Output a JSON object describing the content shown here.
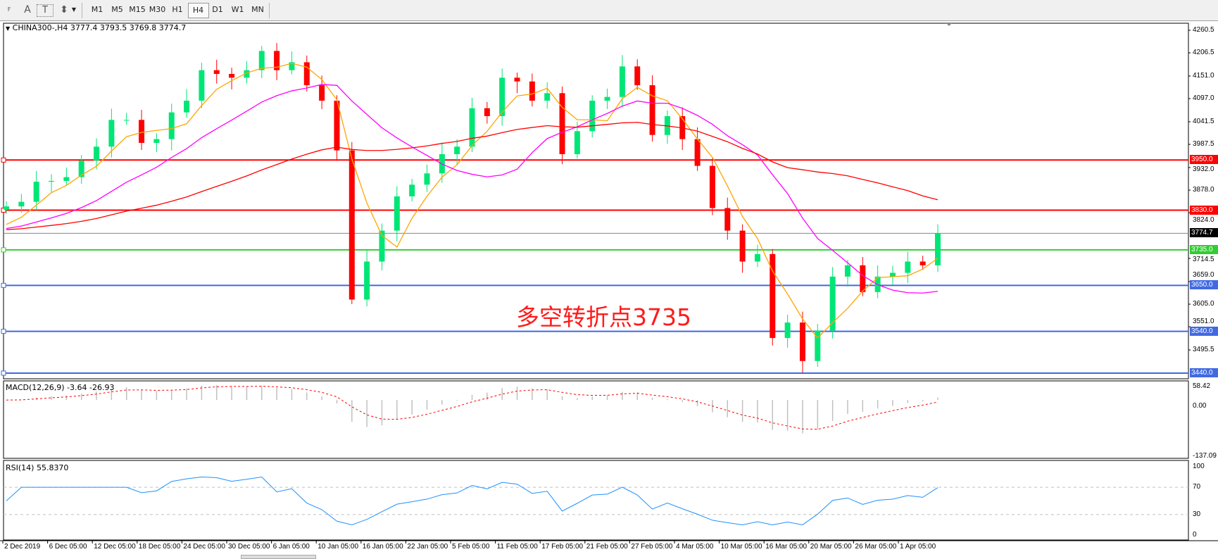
{
  "toolbar": {
    "tools": [
      {
        "icon": "period-separator-icon",
        "label": "F"
      },
      {
        "icon": "text-icon",
        "label": "A"
      },
      {
        "icon": "text-label-icon",
        "label": "T"
      },
      {
        "icon": "arrows-icon",
        "label": "⬍"
      }
    ],
    "timeframes": [
      "M1",
      "M5",
      "M15",
      "M30",
      "H1",
      "H4",
      "D1",
      "W1",
      "MN"
    ],
    "active_timeframe": "H4"
  },
  "chart": {
    "title": "CHINA300-,H4  3777.4 3793.5 3769.8 3774.7",
    "symbol": "CHINA300-",
    "timeframe": "H4",
    "ohlc": {
      "open": 3777.4,
      "high": 3793.5,
      "low": 3769.8,
      "close": 3774.7
    },
    "annotation": "多空转折点3735",
    "price_ticks": [
      "4260.5",
      "4206.5",
      "4151.0",
      "4097.0",
      "4041.5",
      "3987.5",
      "3932.0",
      "3878.0",
      "3824.0",
      "3714.5",
      "3659.0",
      "3605.0",
      "3551.0",
      "3495.5"
    ],
    "levels": [
      {
        "price": 3950.0,
        "label": "3950.0",
        "color": "#ff0000"
      },
      {
        "price": 3830.0,
        "label": "3830.0",
        "color": "#ff0000"
      },
      {
        "price": 3774.7,
        "label": "3774.7",
        "color": "#000000",
        "line_color": "#778899"
      },
      {
        "price": 3735.0,
        "label": "3735.0",
        "color": "#32cd32"
      },
      {
        "price": 3650.0,
        "label": "3650.0",
        "color": "#4169e1"
      },
      {
        "price": 3540.0,
        "label": "3540.0",
        "color": "#4169e1"
      },
      {
        "price": 3440.0,
        "label": "3440.0",
        "color": "#4169e1"
      }
    ],
    "colors": {
      "bull": "#00e676",
      "bear": "#ff0000",
      "ma_fast": "#ffa500",
      "ma_mid": "#ff00ff",
      "ma_slow": "#ff0000",
      "rsi": "#1e90ff",
      "macd_hist": "#c0c0c0",
      "macd_signal": "#ff0000"
    },
    "closes": [
      3839,
      3850,
      3898,
      3900,
      3909,
      3949,
      3982,
      4046,
      4046,
      3991,
      4000,
      4064,
      4092,
      4165,
      4156,
      4147,
      4165,
      4211,
      4165,
      4184,
      4129,
      4092,
      3973,
      3616,
      3707,
      3781,
      3863,
      3891,
      3918,
      3964,
      3982,
      4074,
      4055,
      4147,
      4138,
      4092,
      4110,
      3964,
      4019,
      4092,
      4101,
      4174,
      4129,
      4010,
      4055,
      4000,
      3936,
      3835,
      3781,
      3707,
      3725,
      3524,
      3561,
      3469,
      3542,
      3671,
      3698,
      3634,
      3671,
      3680,
      3707,
      3698,
      3775
    ]
  },
  "macd": {
    "label": "MACD(12,26,9) -3.64 -26.93",
    "ticks": [
      "58.42",
      "0.00",
      "-137.09"
    ]
  },
  "rsi": {
    "label": "RSI(14) 55.8370",
    "ticks": [
      "100",
      "70",
      "30",
      "0"
    ]
  },
  "time_axis": [
    "2 Dec 2019",
    "6 Dec 05:00",
    "12 Dec 05:00",
    "18 Dec 05:00",
    "24 Dec 05:00",
    "30 Dec 05:00",
    "6 Jan 05:00",
    "10 Jan 05:00",
    "16 Jan 05:00",
    "22 Jan 05:00",
    "5 Feb 05:00",
    "11 Feb 05:00",
    "17 Feb 05:00",
    "21 Feb 05:00",
    "27 Feb 05:00",
    "4 Mar 05:00",
    "10 Mar 05:00",
    "16 Mar 05:00",
    "20 Mar 05:00",
    "26 Mar 05:00",
    "1 Apr 05:00"
  ]
}
